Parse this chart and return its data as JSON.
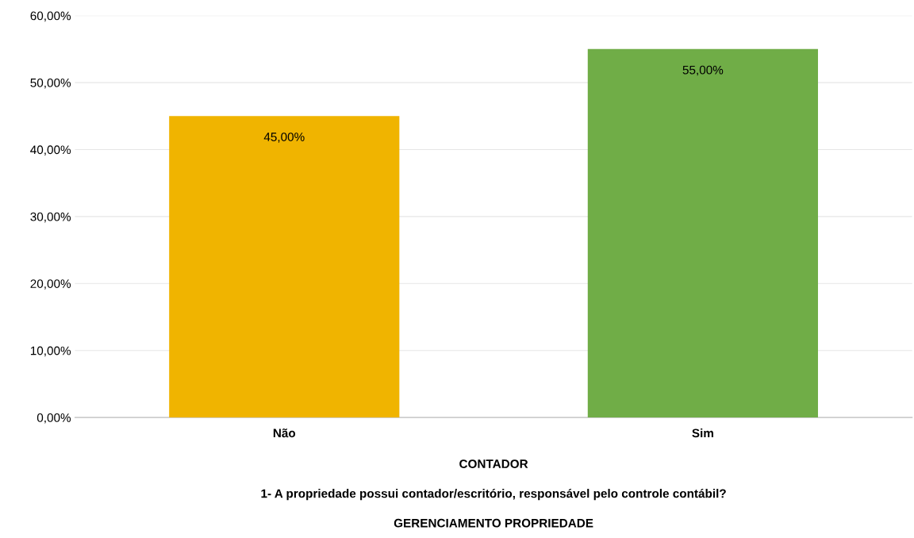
{
  "chart_data": {
    "type": "bar",
    "categories": [
      "Não",
      "Sim"
    ],
    "values": [
      45,
      55
    ],
    "colors": [
      "#f0b400",
      "#70ad47"
    ],
    "value_labels": [
      "45,00%",
      "55,00%"
    ],
    "ylim": [
      0,
      60
    ],
    "yticks": [
      {
        "value": 0,
        "label": "0,00%"
      },
      {
        "value": 10,
        "label": "10,00%"
      },
      {
        "value": 20,
        "label": "20,00%"
      },
      {
        "value": 30,
        "label": "30,00%"
      },
      {
        "value": 40,
        "label": "40,00%"
      },
      {
        "value": 50,
        "label": "50,00%"
      },
      {
        "value": 60,
        "label": "60,00%"
      }
    ],
    "grid": "y",
    "legend": false,
    "annotations": [
      "CONTADOR",
      "1- A propriedade possui contador/escritório, responsável pelo controle contábil?",
      "GERENCIAMENTO PROPRIEDADE"
    ]
  }
}
